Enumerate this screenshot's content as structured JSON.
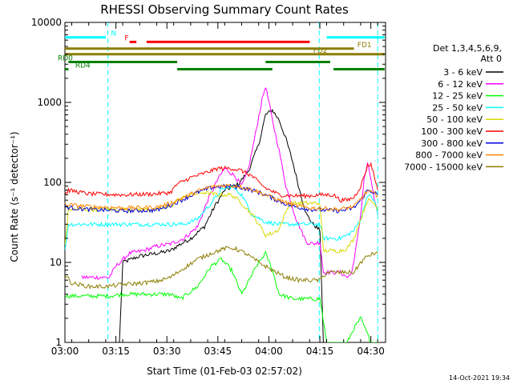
{
  "footer_date": "14-Oct-2021 19:34",
  "chart_data": {
    "type": "line",
    "title": "RHESSI Observing Summary Count Rates",
    "xlabel": "Start Time (01-Feb-03 02:57:02)",
    "ylabel": "Count Rate (s⁻¹ detector⁻¹)",
    "y_scale": "log",
    "ylim": [
      1,
      10000
    ],
    "xlim_minutes": [
      2.97,
      97.3
    ],
    "x_ticks": [
      {
        "minutes": 2.97,
        "label": "03:00"
      },
      {
        "minutes": 17.97,
        "label": "03:15"
      },
      {
        "minutes": 32.97,
        "label": "03:30"
      },
      {
        "minutes": 47.97,
        "label": "03:45"
      },
      {
        "minutes": 62.97,
        "label": "04:00"
      },
      {
        "minutes": 77.97,
        "label": "04:15"
      },
      {
        "minutes": 92.97,
        "label": "04:30"
      }
    ],
    "y_ticks": [
      {
        "value": 1,
        "label": "1"
      },
      {
        "value": 10,
        "label": "10"
      },
      {
        "value": 100,
        "label": "100"
      },
      {
        "value": 1000,
        "label": "1000"
      },
      {
        "value": 10000,
        "label": "10000"
      }
    ],
    "legend": {
      "title_lines": [
        "Det 1,3,4,5,6,9,",
        "Att 0"
      ],
      "placement": "right"
    },
    "series": [
      {
        "name": "3 - 6 keV",
        "color": "#000000",
        "points": [
          [
            0,
            1.0
          ],
          [
            19,
            1.0
          ],
          [
            20,
            10
          ],
          [
            25,
            12
          ],
          [
            30,
            13
          ],
          [
            34,
            14
          ],
          [
            36,
            16
          ],
          [
            40,
            20
          ],
          [
            44,
            28
          ],
          [
            47,
            50
          ],
          [
            50,
            80
          ],
          [
            54,
            95
          ],
          [
            57,
            140
          ],
          [
            60,
            300
          ],
          [
            62,
            700
          ],
          [
            64,
            800
          ],
          [
            66,
            600
          ],
          [
            68,
            350
          ],
          [
            70,
            180
          ],
          [
            72,
            80
          ],
          [
            74,
            40
          ],
          [
            76,
            30
          ],
          [
            78,
            25
          ],
          [
            79,
            1.0
          ],
          [
            80,
            1.0
          ],
          [
            97,
            1.0
          ]
        ]
      },
      {
        "name": "6 - 12 keV",
        "color": "#ff00ff",
        "points": [
          [
            8,
            6.5
          ],
          [
            16,
            6.5
          ],
          [
            18,
            9
          ],
          [
            22,
            13
          ],
          [
            26,
            14
          ],
          [
            30,
            16
          ],
          [
            34,
            17
          ],
          [
            38,
            20
          ],
          [
            42,
            28
          ],
          [
            45,
            60
          ],
          [
            48,
            110
          ],
          [
            50,
            150
          ],
          [
            53,
            120
          ],
          [
            55,
            90
          ],
          [
            57,
            150
          ],
          [
            59,
            400
          ],
          [
            61,
            1100
          ],
          [
            62,
            1600
          ],
          [
            63,
            1000
          ],
          [
            64,
            600
          ],
          [
            66,
            250
          ],
          [
            68,
            90
          ],
          [
            71,
            35
          ],
          [
            74,
            18
          ],
          [
            76,
            17
          ],
          [
            78,
            18
          ],
          [
            79,
            7.5
          ],
          [
            84,
            7.5
          ],
          [
            86,
            6.5
          ],
          [
            87,
            7
          ],
          [
            88,
            10
          ],
          [
            90,
            40
          ],
          [
            91,
            110
          ],
          [
            92,
            170
          ],
          [
            93,
            110
          ],
          [
            94,
            60
          ],
          [
            95,
            40
          ]
        ]
      },
      {
        "name": "12 - 25 keV",
        "color": "#00ff00",
        "points": [
          [
            0,
            3.8
          ],
          [
            16,
            3.8
          ],
          [
            20,
            4
          ],
          [
            34,
            4
          ],
          [
            37,
            3.5
          ],
          [
            42,
            5
          ],
          [
            46,
            9
          ],
          [
            49,
            11
          ],
          [
            52,
            8
          ],
          [
            55,
            4
          ],
          [
            58,
            7
          ],
          [
            60,
            10
          ],
          [
            62,
            13
          ],
          [
            64,
            8
          ],
          [
            66,
            4
          ],
          [
            70,
            3.5
          ],
          [
            78,
            3.5
          ],
          [
            80,
            1.0
          ],
          [
            86,
            1.0
          ],
          [
            88,
            1.5
          ],
          [
            90,
            2
          ],
          [
            93,
            1.0
          ],
          [
            96,
            1.0
          ]
        ]
      },
      {
        "name": "25 - 50 keV",
        "color": "#00ffff",
        "points": [
          [
            0,
            15
          ],
          [
            3,
            14
          ],
          [
            4,
            30
          ],
          [
            16,
            30
          ],
          [
            20,
            30
          ],
          [
            30,
            30
          ],
          [
            34,
            30
          ],
          [
            38,
            30
          ],
          [
            42,
            35
          ],
          [
            46,
            55
          ],
          [
            49,
            80
          ],
          [
            52,
            90
          ],
          [
            55,
            70
          ],
          [
            58,
            40
          ],
          [
            62,
            32
          ],
          [
            66,
            30
          ],
          [
            70,
            30
          ],
          [
            74,
            30
          ],
          [
            78,
            30
          ],
          [
            79,
            20
          ],
          [
            84,
            20
          ],
          [
            86,
            22
          ],
          [
            88,
            25
          ],
          [
            90,
            35
          ],
          [
            92,
            70
          ],
          [
            94,
            60
          ],
          [
            95,
            40
          ]
        ]
      },
      {
        "name": "50 - 100 keV",
        "color": "#d8d800",
        "points": [
          [
            0,
            16
          ],
          [
            3,
            16
          ],
          [
            4,
            46
          ],
          [
            20,
            46
          ],
          [
            30,
            46
          ],
          [
            34,
            50
          ],
          [
            36,
            60
          ],
          [
            40,
            70
          ],
          [
            44,
            75
          ],
          [
            48,
            70
          ],
          [
            52,
            70
          ],
          [
            55,
            55
          ],
          [
            58,
            40
          ],
          [
            60,
            30
          ],
          [
            62,
            22
          ],
          [
            64,
            23
          ],
          [
            66,
            26
          ],
          [
            69,
            55
          ],
          [
            74,
            55
          ],
          [
            78,
            55
          ],
          [
            79,
            14
          ],
          [
            84,
            14
          ],
          [
            86,
            15
          ],
          [
            88,
            20
          ],
          [
            90,
            35
          ],
          [
            92,
            60
          ],
          [
            94,
            55
          ],
          [
            95,
            45
          ]
        ]
      },
      {
        "name": "100 - 300 keV",
        "color": "#ff0000",
        "points": [
          [
            0,
            70
          ],
          [
            3,
            70
          ],
          [
            4,
            80
          ],
          [
            10,
            72
          ],
          [
            20,
            70
          ],
          [
            30,
            72
          ],
          [
            34,
            75
          ],
          [
            36,
            95
          ],
          [
            40,
            115
          ],
          [
            44,
            130
          ],
          [
            48,
            150
          ],
          [
            52,
            150
          ],
          [
            55,
            140
          ],
          [
            58,
            120
          ],
          [
            60,
            100
          ],
          [
            62,
            85
          ],
          [
            66,
            70
          ],
          [
            70,
            68
          ],
          [
            75,
            68
          ],
          [
            78,
            70
          ],
          [
            82,
            70
          ],
          [
            84,
            60
          ],
          [
            86,
            60
          ],
          [
            88,
            65
          ],
          [
            90,
            90
          ],
          [
            92,
            160
          ],
          [
            93,
            170
          ],
          [
            94,
            120
          ],
          [
            95,
            80
          ]
        ]
      },
      {
        "name": "300 - 800 keV",
        "color": "#0000dd",
        "points": [
          [
            0,
            52
          ],
          [
            5,
            48
          ],
          [
            10,
            46
          ],
          [
            20,
            44
          ],
          [
            30,
            45
          ],
          [
            34,
            52
          ],
          [
            38,
            62
          ],
          [
            42,
            75
          ],
          [
            46,
            86
          ],
          [
            50,
            90
          ],
          [
            54,
            88
          ],
          [
            58,
            80
          ],
          [
            62,
            70
          ],
          [
            66,
            58
          ],
          [
            70,
            50
          ],
          [
            75,
            46
          ],
          [
            80,
            45
          ],
          [
            84,
            44
          ],
          [
            88,
            48
          ],
          [
            90,
            60
          ],
          [
            92,
            80
          ],
          [
            94,
            75
          ],
          [
            95,
            70
          ]
        ]
      },
      {
        "name": "800 - 7000 keV",
        "color": "#ff8800",
        "points": [
          [
            0,
            55
          ],
          [
            5,
            52
          ],
          [
            10,
            50
          ],
          [
            20,
            48
          ],
          [
            30,
            49
          ],
          [
            34,
            55
          ],
          [
            38,
            65
          ],
          [
            42,
            78
          ],
          [
            46,
            88
          ],
          [
            50,
            92
          ],
          [
            54,
            90
          ],
          [
            58,
            82
          ],
          [
            62,
            70
          ],
          [
            66,
            60
          ],
          [
            70,
            52
          ],
          [
            75,
            48
          ],
          [
            80,
            47
          ],
          [
            84,
            46
          ],
          [
            88,
            50
          ],
          [
            90,
            62
          ],
          [
            92,
            78
          ],
          [
            94,
            72
          ],
          [
            95,
            68
          ]
        ]
      },
      {
        "name": "7000 - 15000 keV",
        "color": "#8b7d00",
        "points": [
          [
            0,
            8
          ],
          [
            3,
            7
          ],
          [
            5,
            5.5
          ],
          [
            10,
            5
          ],
          [
            15,
            5
          ],
          [
            20,
            5.3
          ],
          [
            25,
            5.5
          ],
          [
            30,
            5.8
          ],
          [
            34,
            6.5
          ],
          [
            38,
            8.5
          ],
          [
            42,
            11
          ],
          [
            46,
            13
          ],
          [
            50,
            15
          ],
          [
            53,
            15
          ],
          [
            56,
            13
          ],
          [
            60,
            10
          ],
          [
            64,
            8
          ],
          [
            68,
            6.5
          ],
          [
            72,
            6
          ],
          [
            76,
            6
          ],
          [
            78,
            6
          ],
          [
            80,
            7.5
          ],
          [
            84,
            7.5
          ],
          [
            88,
            7.5
          ],
          [
            90,
            10
          ],
          [
            92,
            12
          ],
          [
            94,
            13
          ],
          [
            95,
            13
          ]
        ]
      }
    ],
    "markers": [
      {
        "minutes": 15.6,
        "color": "#00ffff"
      },
      {
        "minutes": 77.8,
        "color": "#00ffff"
      },
      {
        "minutes": 95.0,
        "color": "#00ffff"
      }
    ],
    "flags": [
      {
        "label": "N",
        "color": "#00ffff",
        "value": 6500,
        "segments": [
          [
            0,
            15
          ],
          [
            80,
            97
          ]
        ],
        "label_at": 16.5
      },
      {
        "label": "F",
        "color": "#ff0000",
        "value": 5700,
        "segments": [
          [
            22,
            24
          ],
          [
            27,
            75
          ]
        ],
        "label_at": 20.5
      },
      {
        "label": "FD1",
        "color": "#8b7d00",
        "value": 4700,
        "segments": [
          [
            0,
            88
          ]
        ],
        "label_at": 89
      },
      {
        "label": "FD2",
        "color": "#8b7d00",
        "value": 4000,
        "segments": [
          [
            0,
            97
          ]
        ],
        "label_at": 76
      },
      {
        "label": "RD0",
        "color": "#008000",
        "value": 3200,
        "segments": [
          [
            4,
            36
          ],
          [
            62,
            81
          ]
        ],
        "label_at": -1
      },
      {
        "label": "RD4",
        "color": "#008000",
        "value": 2600,
        "segments": [
          [
            0,
            4
          ],
          [
            36,
            64
          ],
          [
            82,
            97
          ]
        ],
        "label_at": 6
      }
    ]
  }
}
